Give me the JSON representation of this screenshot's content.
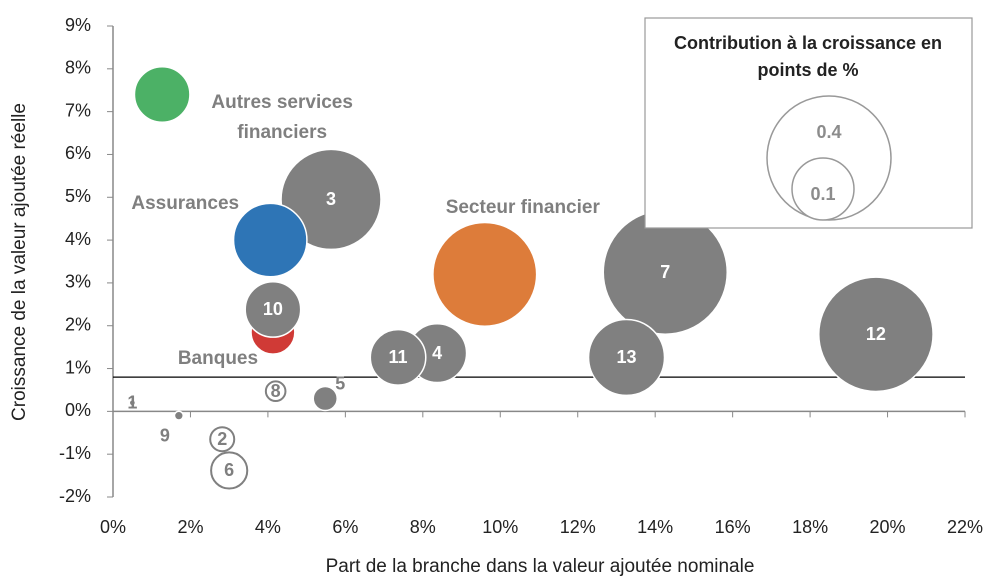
{
  "chart_data": {
    "type": "bubble",
    "x_label": "Part de la branche dans la valeur ajoutée nominale",
    "y_label": "Croissance de la valeur ajoutée réelle",
    "legend_title": "Contribution à la croissance en points de %",
    "size_legend": [
      0.4,
      0.1
    ],
    "xlim": [
      0,
      22
    ],
    "xticks": [
      {
        "value": 0,
        "label": "0%"
      },
      {
        "value": 2,
        "label": "2%"
      },
      {
        "value": 4,
        "label": "4%"
      },
      {
        "value": 6,
        "label": "6%"
      },
      {
        "value": 8,
        "label": "8%"
      },
      {
        "value": 10,
        "label": "10%"
      },
      {
        "value": 12,
        "label": "12%"
      },
      {
        "value": 14,
        "label": "14%"
      },
      {
        "value": 16,
        "label": "16%"
      },
      {
        "value": 18,
        "label": "18%"
      },
      {
        "value": 20,
        "label": "20%"
      },
      {
        "value": 22,
        "label": "22%"
      }
    ],
    "ylim": [
      -2,
      9
    ],
    "yticks": [
      {
        "value": -2,
        "label": "-2%"
      },
      {
        "value": -1,
        "label": "-1%"
      },
      {
        "value": 0,
        "label": "0%"
      },
      {
        "value": 1,
        "label": "1%"
      },
      {
        "value": 2,
        "label": "2%"
      },
      {
        "value": 3,
        "label": "3%"
      },
      {
        "value": 4,
        "label": "4%"
      },
      {
        "value": 5,
        "label": "5%"
      },
      {
        "value": 6,
        "label": "6%"
      },
      {
        "value": 7,
        "label": "7%"
      },
      {
        "value": 8,
        "label": "8%"
      },
      {
        "value": 9,
        "label": "9%"
      }
    ],
    "hline": 0.8,
    "series": [
      {
        "labels": [
          "7",
          "12",
          "Secteur financier",
          "3",
          "Assurances",
          "13",
          "4",
          "11",
          "Banques",
          "10",
          "Autres services financiers",
          "5",
          "8",
          "1",
          "9",
          "2",
          "6"
        ],
        "x": [
          14.26,
          19.7,
          9.6,
          5.63,
          4.06,
          13.26,
          8.37,
          7.36,
          4.13,
          4.13,
          1.27,
          5.48,
          4.2,
          0.5,
          1.7,
          2.82,
          3.0
        ],
        "values": [
          3.25,
          1.8,
          3.2,
          4.95,
          4.0,
          1.26,
          1.36,
          1.26,
          1.85,
          2.38,
          7.4,
          0.3,
          0.47,
          0.2,
          -0.1,
          -0.65,
          -1.38
        ],
        "sizes": [
          0.4,
          0.34,
          0.28,
          0.26,
          0.14,
          0.15,
          0.09,
          0.08,
          0.05,
          0.08,
          0.08,
          0.015,
          -0.01,
          0.001,
          0.002,
          -0.015,
          -0.034
        ],
        "colors": [
          "#808080",
          "#808080",
          "#dd7c3a",
          "#808080",
          "#2e75b6",
          "#808080",
          "#808080",
          "#808080",
          "#d03a36",
          "#808080",
          "#4cb166",
          "#808080",
          "#808080",
          "#808080",
          "#808080",
          "#808080",
          "#808080"
        ]
      }
    ]
  }
}
